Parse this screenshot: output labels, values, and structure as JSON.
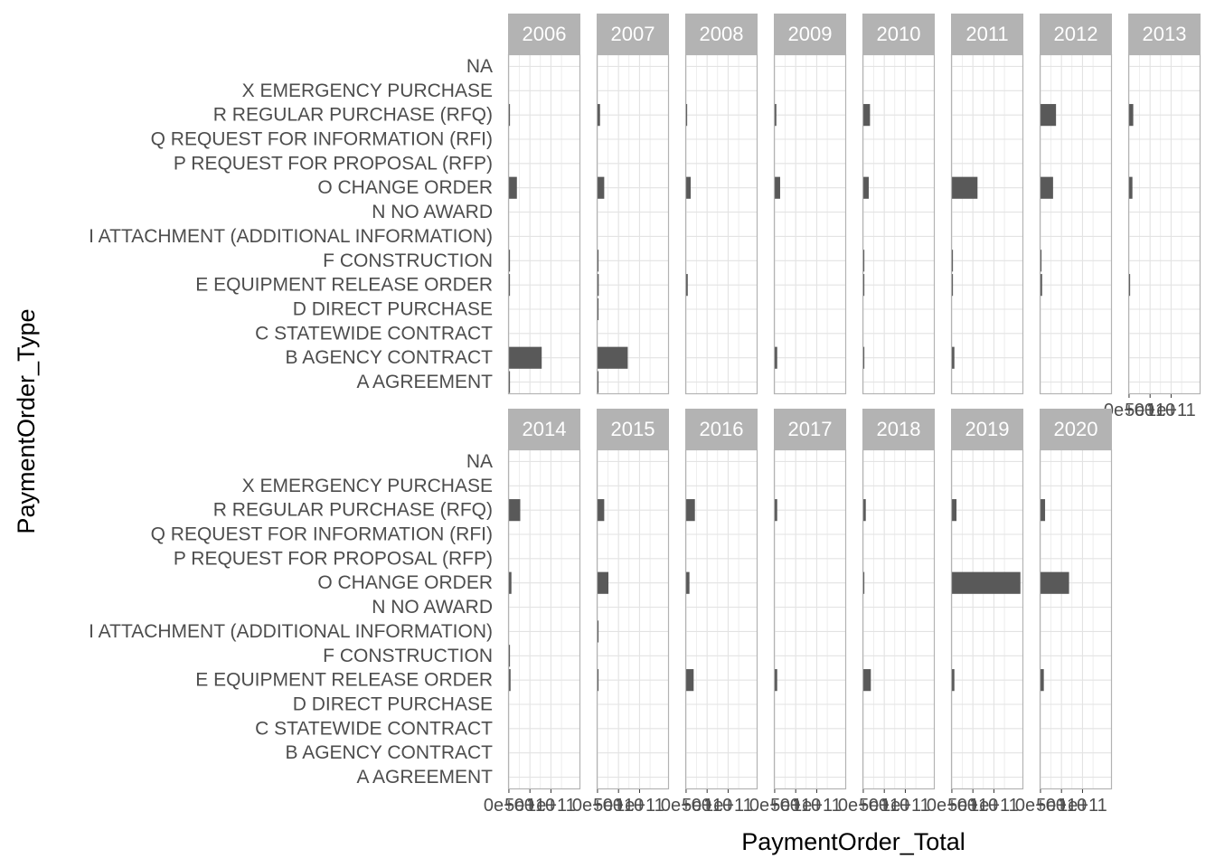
{
  "chart_data": {
    "type": "bar",
    "orientation": "horizontal",
    "facet_by": "year",
    "xlabel": "PaymentOrder_Total",
    "ylabel": "PaymentOrder_Type",
    "x_ticks": [
      {
        "value": 0,
        "label": "0e+00"
      },
      {
        "value": 50000000000,
        "label": "5e+10"
      },
      {
        "value": 100000000000,
        "label": "1e+11"
      }
    ],
    "xlim": [
      -2000000000,
      170000000000
    ],
    "categories": [
      "A AGREEMENT",
      "B AGENCY CONTRACT",
      "C STATEWIDE CONTRACT",
      "D DIRECT PURCHASE",
      "E EQUIPMENT RELEASE ORDER",
      "F CONSTRUCTION",
      "I ATTACHMENT (ADDITIONAL INFORMATION)",
      "N NO AWARD",
      "O CHANGE ORDER",
      "P REQUEST FOR PROPOSAL (RFP)",
      "Q REQUEST FOR INFORMATION (RFI)",
      "R REGULAR PURCHASE (RFQ)",
      "X EMERGENCY PURCHASE",
      "NA"
    ],
    "grid": true,
    "colors": {
      "bar": "#595959",
      "strip": "#b3b3b3",
      "strip_text": "#ffffff",
      "panel_border": "#b3b3b3",
      "grid": "#e3e3e3",
      "label": "#4d4d4d"
    },
    "facets": [
      {
        "year": "2006",
        "values": {
          "A AGREEMENT": 1000000000,
          "B AGENCY CONTRACT": 78000000000,
          "E EQUIPMENT RELEASE ORDER": 1000000000,
          "F CONSTRUCTION": 1000000000,
          "O CHANGE ORDER": 19000000000,
          "R REGULAR PURCHASE (RFQ)": 2000000000
        }
      },
      {
        "year": "2007",
        "values": {
          "A AGREEMENT": 1000000000,
          "B AGENCY CONTRACT": 72000000000,
          "D DIRECT PURCHASE": 1000000000,
          "E EQUIPMENT RELEASE ORDER": 3000000000,
          "F CONSTRUCTION": 1000000000,
          "O CHANGE ORDER": 16000000000,
          "R REGULAR PURCHASE (RFQ)": 6000000000
        }
      },
      {
        "year": "2008",
        "values": {
          "E EQUIPMENT RELEASE ORDER": 4000000000,
          "O CHANGE ORDER": 11000000000,
          "R REGULAR PURCHASE (RFQ)": 2000000000
        }
      },
      {
        "year": "2009",
        "values": {
          "B AGENCY CONTRACT": 6000000000,
          "O CHANGE ORDER": 13000000000,
          "R REGULAR PURCHASE (RFQ)": 4000000000
        }
      },
      {
        "year": "2010",
        "values": {
          "B AGENCY CONTRACT": 1000000000,
          "E EQUIPMENT RELEASE ORDER": 1000000000,
          "F CONSTRUCTION": 1000000000,
          "O CHANGE ORDER": 13000000000,
          "R REGULAR PURCHASE (RFQ)": 16000000000
        }
      },
      {
        "year": "2011",
        "values": {
          "B AGENCY CONTRACT": 6000000000,
          "E EQUIPMENT RELEASE ORDER": 1000000000,
          "F CONSTRUCTION": 1000000000,
          "O CHANGE ORDER": 61000000000
        }
      },
      {
        "year": "2012",
        "values": {
          "E EQUIPMENT RELEASE ORDER": 4000000000,
          "F CONSTRUCTION": 1000000000,
          "O CHANGE ORDER": 30000000000,
          "R REGULAR PURCHASE (RFQ)": 37000000000
        }
      },
      {
        "year": "2013",
        "values": {
          "E EQUIPMENT RELEASE ORDER": 1000000000,
          "O CHANGE ORDER": 8000000000,
          "R REGULAR PURCHASE (RFQ)": 10000000000
        }
      },
      {
        "year": "2014",
        "values": {
          "E EQUIPMENT RELEASE ORDER": 4000000000,
          "F CONSTRUCTION": 1000000000,
          "O CHANGE ORDER": 6000000000,
          "R REGULAR PURCHASE (RFQ)": 27000000000
        }
      },
      {
        "year": "2015",
        "values": {
          "E EQUIPMENT RELEASE ORDER": 1000000000,
          "I ATTACHMENT (ADDITIONAL INFORMATION)": 2000000000,
          "O CHANGE ORDER": 26000000000,
          "R REGULAR PURCHASE (RFQ)": 16000000000
        }
      },
      {
        "year": "2016",
        "values": {
          "E EQUIPMENT RELEASE ORDER": 18000000000,
          "O CHANGE ORDER": 8000000000,
          "R REGULAR PURCHASE (RFQ)": 21000000000
        }
      },
      {
        "year": "2017",
        "values": {
          "E EQUIPMENT RELEASE ORDER": 6000000000,
          "R REGULAR PURCHASE (RFQ)": 6000000000
        }
      },
      {
        "year": "2018",
        "values": {
          "E EQUIPMENT RELEASE ORDER": 18000000000,
          "O CHANGE ORDER": 1000000000,
          "R REGULAR PURCHASE (RFQ)": 6000000000
        }
      },
      {
        "year": "2019",
        "values": {
          "E EQUIPMENT RELEASE ORDER": 6000000000,
          "O CHANGE ORDER": 163000000000,
          "R REGULAR PURCHASE (RFQ)": 11000000000
        }
      },
      {
        "year": "2020",
        "values": {
          "E EQUIPMENT RELEASE ORDER": 8000000000,
          "O CHANGE ORDER": 68000000000,
          "R REGULAR PURCHASE (RFQ)": 11000000000
        }
      }
    ]
  }
}
